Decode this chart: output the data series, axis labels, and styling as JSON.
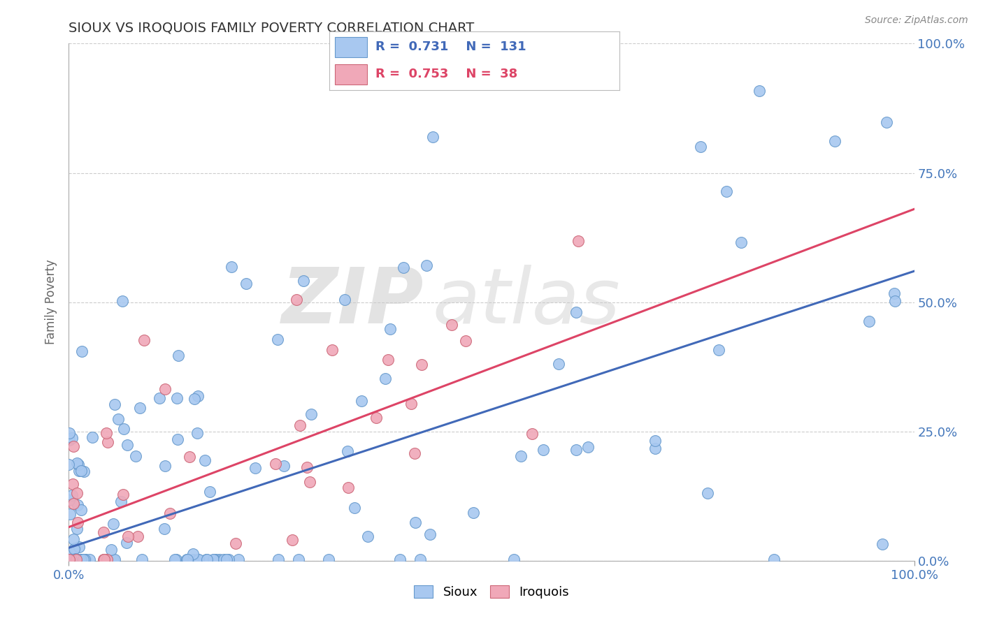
{
  "title": "SIOUX VS IROQUOIS FAMILY POVERTY CORRELATION CHART",
  "source_text": "Source: ZipAtlas.com",
  "ylabel": "Family Poverty",
  "xlim": [
    0,
    1
  ],
  "ylim": [
    0,
    1
  ],
  "xtick_labels": [
    "0.0%",
    "100.0%"
  ],
  "ytick_labels": [
    "0.0%",
    "25.0%",
    "50.0%",
    "75.0%",
    "100.0%"
  ],
  "ytick_positions": [
    0.0,
    0.25,
    0.5,
    0.75,
    1.0
  ],
  "sioux_color": "#a8c8f0",
  "sioux_edge_color": "#6699cc",
  "iroquois_color": "#f0a8b8",
  "iroquois_edge_color": "#cc6677",
  "sioux_line_color": "#4169b8",
  "iroquois_line_color": "#dd4466",
  "sioux_R": 0.731,
  "sioux_N": 131,
  "iroquois_R": 0.753,
  "iroquois_N": 38,
  "background_color": "#ffffff",
  "grid_color": "#cccccc",
  "title_color": "#333333",
  "legend_label_sioux": "Sioux",
  "legend_label_iroquois": "Iroquois",
  "sioux_line_intercept": 0.025,
  "sioux_line_slope": 0.535,
  "iroquois_line_intercept": 0.065,
  "iroquois_line_slope": 0.615
}
